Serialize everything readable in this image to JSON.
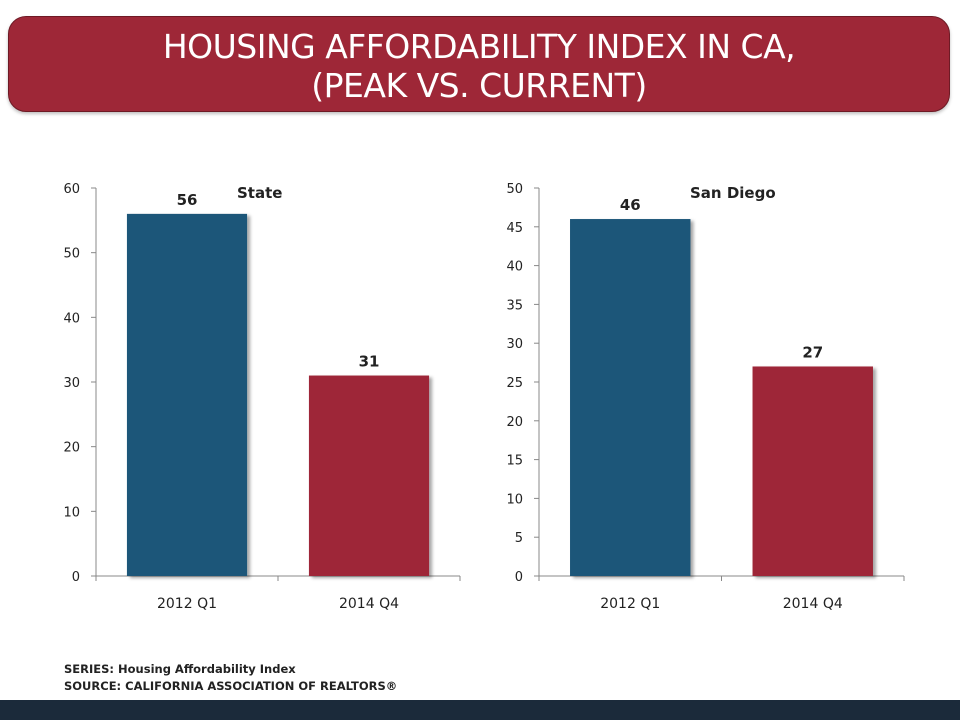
{
  "title": {
    "line1": "HOUSING AFFORDABILITY INDEX IN CA,",
    "line2": "(PEAK VS. CURRENT)"
  },
  "colors": {
    "banner": "#9e2737",
    "peak_bar": "#1e5679",
    "current_bar": "#9e2737",
    "bottom_bar": "#1b2a3a"
  },
  "chart_data": [
    {
      "type": "bar",
      "title": "State",
      "categories": [
        "2012 Q1",
        "2014 Q4"
      ],
      "values": [
        56,
        31
      ],
      "data_labels": [
        "56",
        "31"
      ],
      "ylim": [
        0,
        60
      ],
      "yticks": [
        "0",
        "10",
        "20",
        "30",
        "40",
        "50",
        "60"
      ],
      "grid": false
    },
    {
      "type": "bar",
      "title": "San Diego",
      "categories": [
        "2012 Q1",
        "2014 Q4"
      ],
      "values": [
        46,
        27
      ],
      "data_labels": [
        "46",
        "27"
      ],
      "ylim": [
        0,
        50
      ],
      "yticks": [
        "0",
        "5",
        "10",
        "15",
        "20",
        "25",
        "30",
        "35",
        "40",
        "45",
        "50"
      ],
      "grid": false
    }
  ],
  "footer": {
    "series": "SERIES: Housing Affordability Index",
    "source": "SOURCE:  CALIFORNIA ASSOCIATION OF REALTORS®"
  }
}
